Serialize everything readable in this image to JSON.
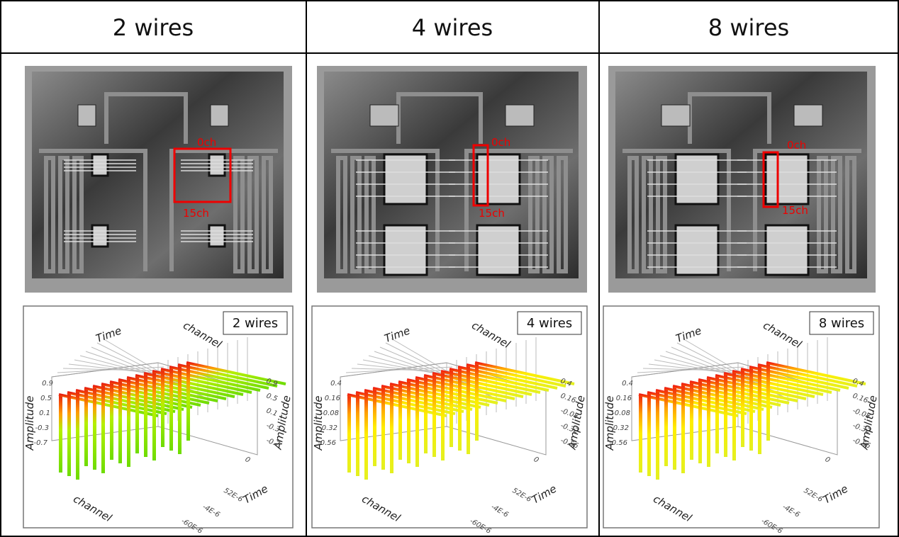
{
  "table": {
    "headers": [
      "2 wires",
      "4 wires",
      "8 wires"
    ],
    "photos": [
      {
        "labels": [
          "0ch",
          "15ch"
        ]
      },
      {
        "labels": [
          "0ch",
          "15ch"
        ]
      },
      {
        "labels": [
          "0ch",
          "15ch"
        ]
      }
    ],
    "plots": [
      {
        "legend": "2 wires",
        "time_top": "Time",
        "channel_top": "channel",
        "amplitude_left": "Amplitude",
        "amplitude_right": "Amplitude",
        "channel_bottom": "channel",
        "time_bottom": "Time",
        "amplitude_ticks": [
          0.9,
          0.5,
          0.1,
          -0.3,
          -0.7
        ],
        "time_ticks": [
          "0",
          "52E-6",
          "-4E-6",
          "-60E-6"
        ]
      },
      {
        "legend": "4 wires",
        "time_top": "Time",
        "channel_top": "channel",
        "amplitude_left": "Amplitude",
        "amplitude_right": "Amplitude",
        "channel_bottom": "channel",
        "time_bottom": "Time",
        "amplitude_ticks": [
          0.4,
          0.16,
          -0.08,
          -0.32,
          -0.56
        ],
        "time_ticks": [
          "0",
          "52E-6",
          "-4E-6",
          "-60E-6"
        ]
      },
      {
        "legend": "8 wires",
        "time_top": "Time",
        "channel_top": "channel",
        "amplitude_left": "Amplitude",
        "amplitude_right": "Amplitude",
        "channel_bottom": "channel",
        "time_bottom": "Time",
        "amplitude_ticks": [
          0.4,
          0.16,
          -0.08,
          -0.32,
          -0.56
        ],
        "time_ticks": [
          "0",
          "52E-6",
          "-4E-6",
          "-60E-6"
        ]
      }
    ]
  }
}
